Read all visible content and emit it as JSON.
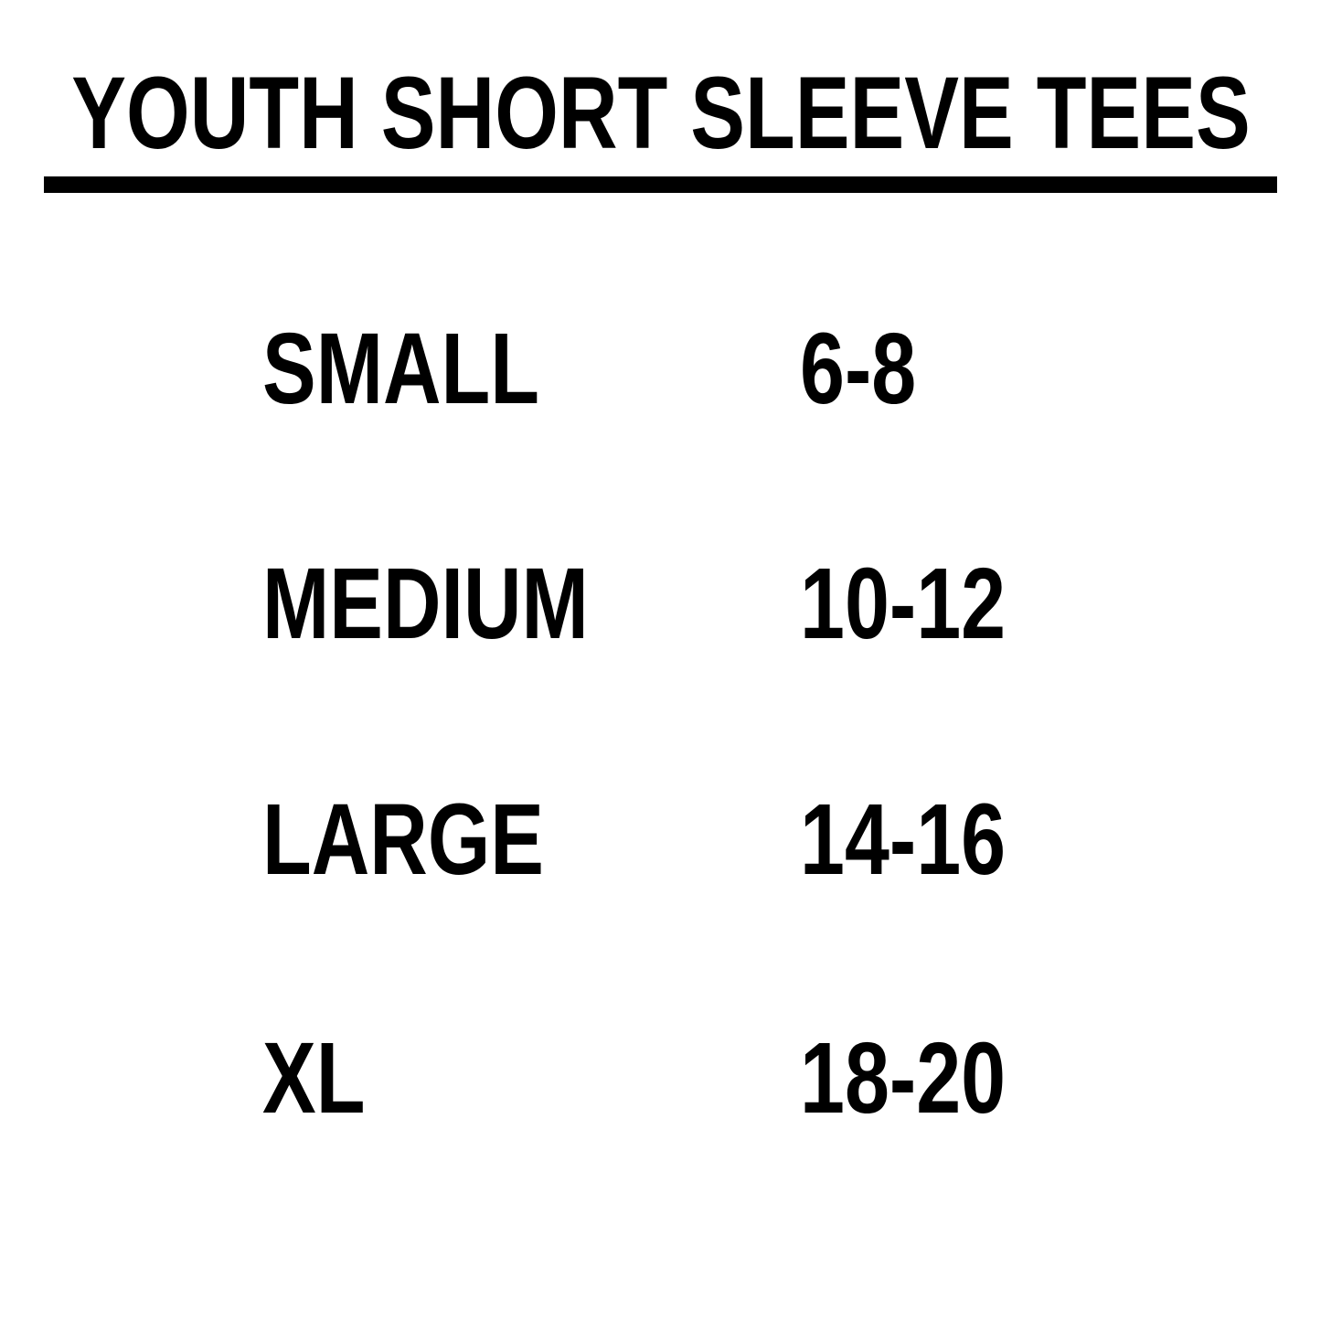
{
  "page": {
    "background_color": "#ffffff",
    "text_color": "#000000"
  },
  "chart_data": {
    "type": "table",
    "title": "YOUTH SHORT SLEEVE TEES",
    "rows": [
      {
        "size": "SMALL",
        "range": "6-8"
      },
      {
        "size": "MEDIUM",
        "range": "10-12"
      },
      {
        "size": "LARGE",
        "range": "14-16"
      },
      {
        "size": "XL",
        "range": "18-20"
      }
    ]
  }
}
